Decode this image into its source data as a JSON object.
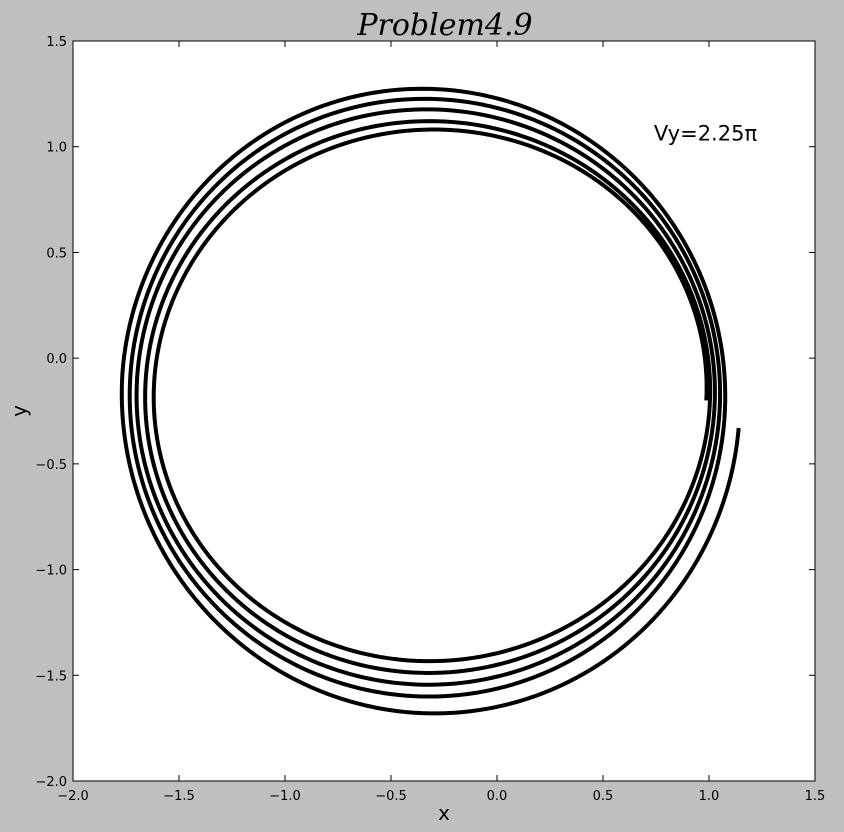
{
  "chart_data": {
    "type": "line",
    "title": "Problem4.9",
    "xlabel": "x",
    "ylabel": "y",
    "xlim": [
      -2.0,
      1.5
    ],
    "ylim": [
      -2.0,
      1.5
    ],
    "xticks": [
      "−2.0",
      "−1.5",
      "−1.0",
      "−0.5",
      "0.0",
      "0.5",
      "1.0",
      "1.5"
    ],
    "yticks": [
      "−2.0",
      "−1.5",
      "−1.0",
      "−0.5",
      "0.0",
      "0.5",
      "1.0",
      "1.5"
    ],
    "grid": false,
    "annotation": {
      "text": "Vy=2.25π",
      "x": 1.0,
      "y": 1.03
    },
    "line_color": "#000000",
    "orbit": {
      "description_points": "precessing elliptical orbit, five loops",
      "start": [
        1.14,
        -0.33
      ],
      "loops": [
        {
          "top": 1.07,
          "bottom": -1.39,
          "left": -1.6,
          "right": 0.99
        },
        {
          "top": 1.12,
          "bottom": -1.46,
          "left": -1.65,
          "right": 1.01
        },
        {
          "top": 1.19,
          "bottom": -1.53,
          "left": -1.7,
          "right": 1.04
        },
        {
          "top": 1.25,
          "bottom": -1.6,
          "left": -1.74,
          "right": 1.07
        },
        {
          "top": 1.31,
          "bottom": -1.69,
          "left": -1.79,
          "right": 1.1
        }
      ]
    }
  }
}
